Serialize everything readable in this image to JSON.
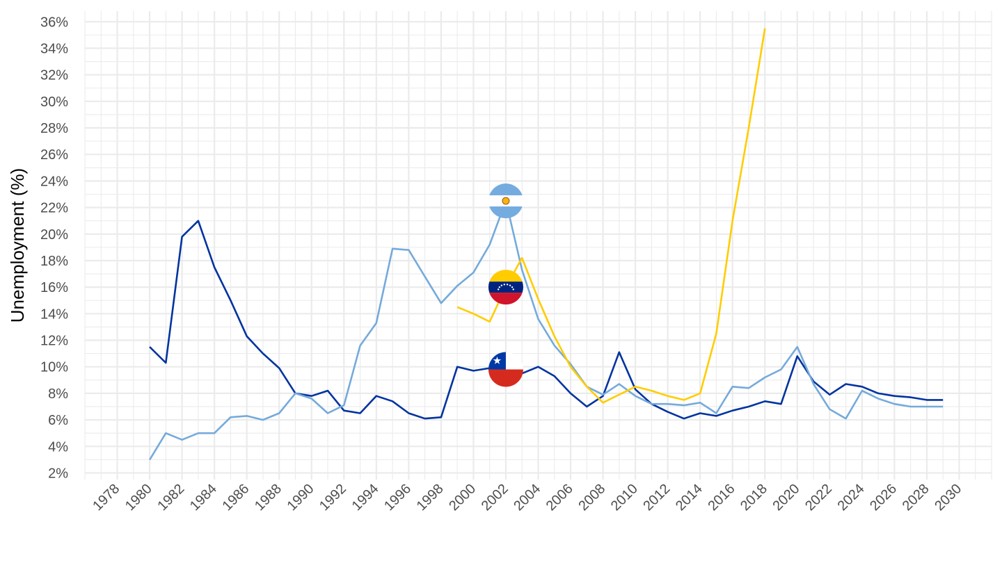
{
  "chart_data": {
    "type": "line",
    "ylabel": "Unemployment (%)",
    "xlabel": "",
    "title": "",
    "xlim": [
      1976,
      2032
    ],
    "ylim": [
      1.5,
      36.8
    ],
    "x_ticks": [
      1978,
      1980,
      1982,
      1984,
      1986,
      1988,
      1990,
      1992,
      1994,
      1996,
      1998,
      2000,
      2002,
      2004,
      2006,
      2008,
      2010,
      2012,
      2014,
      2016,
      2018,
      2020,
      2022,
      2024,
      2026,
      2028,
      2030
    ],
    "y_ticks": [
      2,
      4,
      6,
      8,
      10,
      12,
      14,
      16,
      18,
      20,
      22,
      24,
      26,
      28,
      30,
      32,
      34,
      36
    ],
    "y_tick_suffix": "%",
    "grid": true,
    "legend": "flag icons on series",
    "series": [
      {
        "id": "chile",
        "flag": "chile-flag",
        "color": "#0033a0",
        "flag_at": [
          2002,
          9.8
        ],
        "points": [
          [
            1980,
            11.5
          ],
          [
            1981,
            10.3
          ],
          [
            1982,
            19.8
          ],
          [
            1983,
            21.0
          ],
          [
            1984,
            17.5
          ],
          [
            1985,
            15.0
          ],
          [
            1986,
            12.3
          ],
          [
            1987,
            11.0
          ],
          [
            1988,
            9.9
          ],
          [
            1989,
            8.0
          ],
          [
            1990,
            7.8
          ],
          [
            1991,
            8.2
          ],
          [
            1992,
            6.7
          ],
          [
            1993,
            6.5
          ],
          [
            1994,
            7.8
          ],
          [
            1995,
            7.4
          ],
          [
            1996,
            6.5
          ],
          [
            1997,
            6.1
          ],
          [
            1998,
            6.2
          ],
          [
            1999,
            10.0
          ],
          [
            2000,
            9.7
          ],
          [
            2001,
            9.9
          ],
          [
            2002,
            9.8
          ],
          [
            2003,
            9.5
          ],
          [
            2004,
            10.0
          ],
          [
            2005,
            9.3
          ],
          [
            2006,
            8.0
          ],
          [
            2007,
            7.0
          ],
          [
            2008,
            7.8
          ],
          [
            2009,
            11.1
          ],
          [
            2010,
            8.3
          ],
          [
            2011,
            7.2
          ],
          [
            2012,
            6.6
          ],
          [
            2013,
            6.1
          ],
          [
            2014,
            6.5
          ],
          [
            2015,
            6.3
          ],
          [
            2016,
            6.7
          ],
          [
            2017,
            7.0
          ],
          [
            2018,
            7.4
          ],
          [
            2019,
            7.2
          ],
          [
            2020,
            10.8
          ],
          [
            2021,
            8.9
          ],
          [
            2022,
            7.9
          ],
          [
            2023,
            8.7
          ],
          [
            2024,
            8.5
          ],
          [
            2025,
            8.0
          ],
          [
            2026,
            7.8
          ],
          [
            2027,
            7.7
          ],
          [
            2028,
            7.5
          ],
          [
            2029,
            7.5
          ]
        ]
      },
      {
        "id": "argentina",
        "flag": "argentina-flag",
        "color": "#75aadb",
        "flag_at": [
          2002,
          22.5
        ],
        "points": [
          [
            1980,
            3.0
          ],
          [
            1981,
            5.0
          ],
          [
            1982,
            4.5
          ],
          [
            1983,
            5.0
          ],
          [
            1984,
            5.0
          ],
          [
            1985,
            6.2
          ],
          [
            1986,
            6.3
          ],
          [
            1987,
            6.0
          ],
          [
            1988,
            6.5
          ],
          [
            1989,
            8.0
          ],
          [
            1990,
            7.6
          ],
          [
            1991,
            6.5
          ],
          [
            1992,
            7.1
          ],
          [
            1993,
            11.6
          ],
          [
            1994,
            13.3
          ],
          [
            1995,
            18.9
          ],
          [
            1996,
            18.8
          ],
          [
            1997,
            16.8
          ],
          [
            1998,
            14.8
          ],
          [
            1999,
            16.1
          ],
          [
            2000,
            17.1
          ],
          [
            2001,
            19.2
          ],
          [
            2002,
            22.5
          ],
          [
            2003,
            17.3
          ],
          [
            2004,
            13.6
          ],
          [
            2005,
            11.6
          ],
          [
            2006,
            10.2
          ],
          [
            2007,
            8.5
          ],
          [
            2008,
            7.9
          ],
          [
            2009,
            8.7
          ],
          [
            2010,
            7.8
          ],
          [
            2011,
            7.2
          ],
          [
            2012,
            7.2
          ],
          [
            2013,
            7.1
          ],
          [
            2014,
            7.3
          ],
          [
            2015,
            6.5
          ],
          [
            2016,
            8.5
          ],
          [
            2017,
            8.4
          ],
          [
            2018,
            9.2
          ],
          [
            2019,
            9.8
          ],
          [
            2020,
            11.5
          ],
          [
            2021,
            8.7
          ],
          [
            2022,
            6.8
          ],
          [
            2023,
            6.1
          ],
          [
            2024,
            8.2
          ],
          [
            2025,
            7.6
          ],
          [
            2026,
            7.2
          ],
          [
            2027,
            7.0
          ],
          [
            2028,
            7.0
          ],
          [
            2029,
            7.0
          ]
        ]
      },
      {
        "id": "venezuela",
        "flag": "venezuela-flag",
        "color": "#ffcd00",
        "flag_at": [
          2002,
          16.0
        ],
        "points": [
          [
            1999,
            14.5
          ],
          [
            2000,
            14.0
          ],
          [
            2001,
            13.4
          ],
          [
            2002,
            16.0
          ],
          [
            2003,
            18.2
          ],
          [
            2004,
            15.1
          ],
          [
            2005,
            12.3
          ],
          [
            2006,
            10.0
          ],
          [
            2007,
            8.5
          ],
          [
            2008,
            7.3
          ],
          [
            2009,
            7.9
          ],
          [
            2010,
            8.5
          ],
          [
            2011,
            8.2
          ],
          [
            2012,
            7.8
          ],
          [
            2013,
            7.5
          ],
          [
            2014,
            8.0
          ],
          [
            2015,
            12.5
          ],
          [
            2016,
            21.0
          ],
          [
            2017,
            28.0
          ],
          [
            2018,
            35.5
          ]
        ]
      }
    ]
  }
}
